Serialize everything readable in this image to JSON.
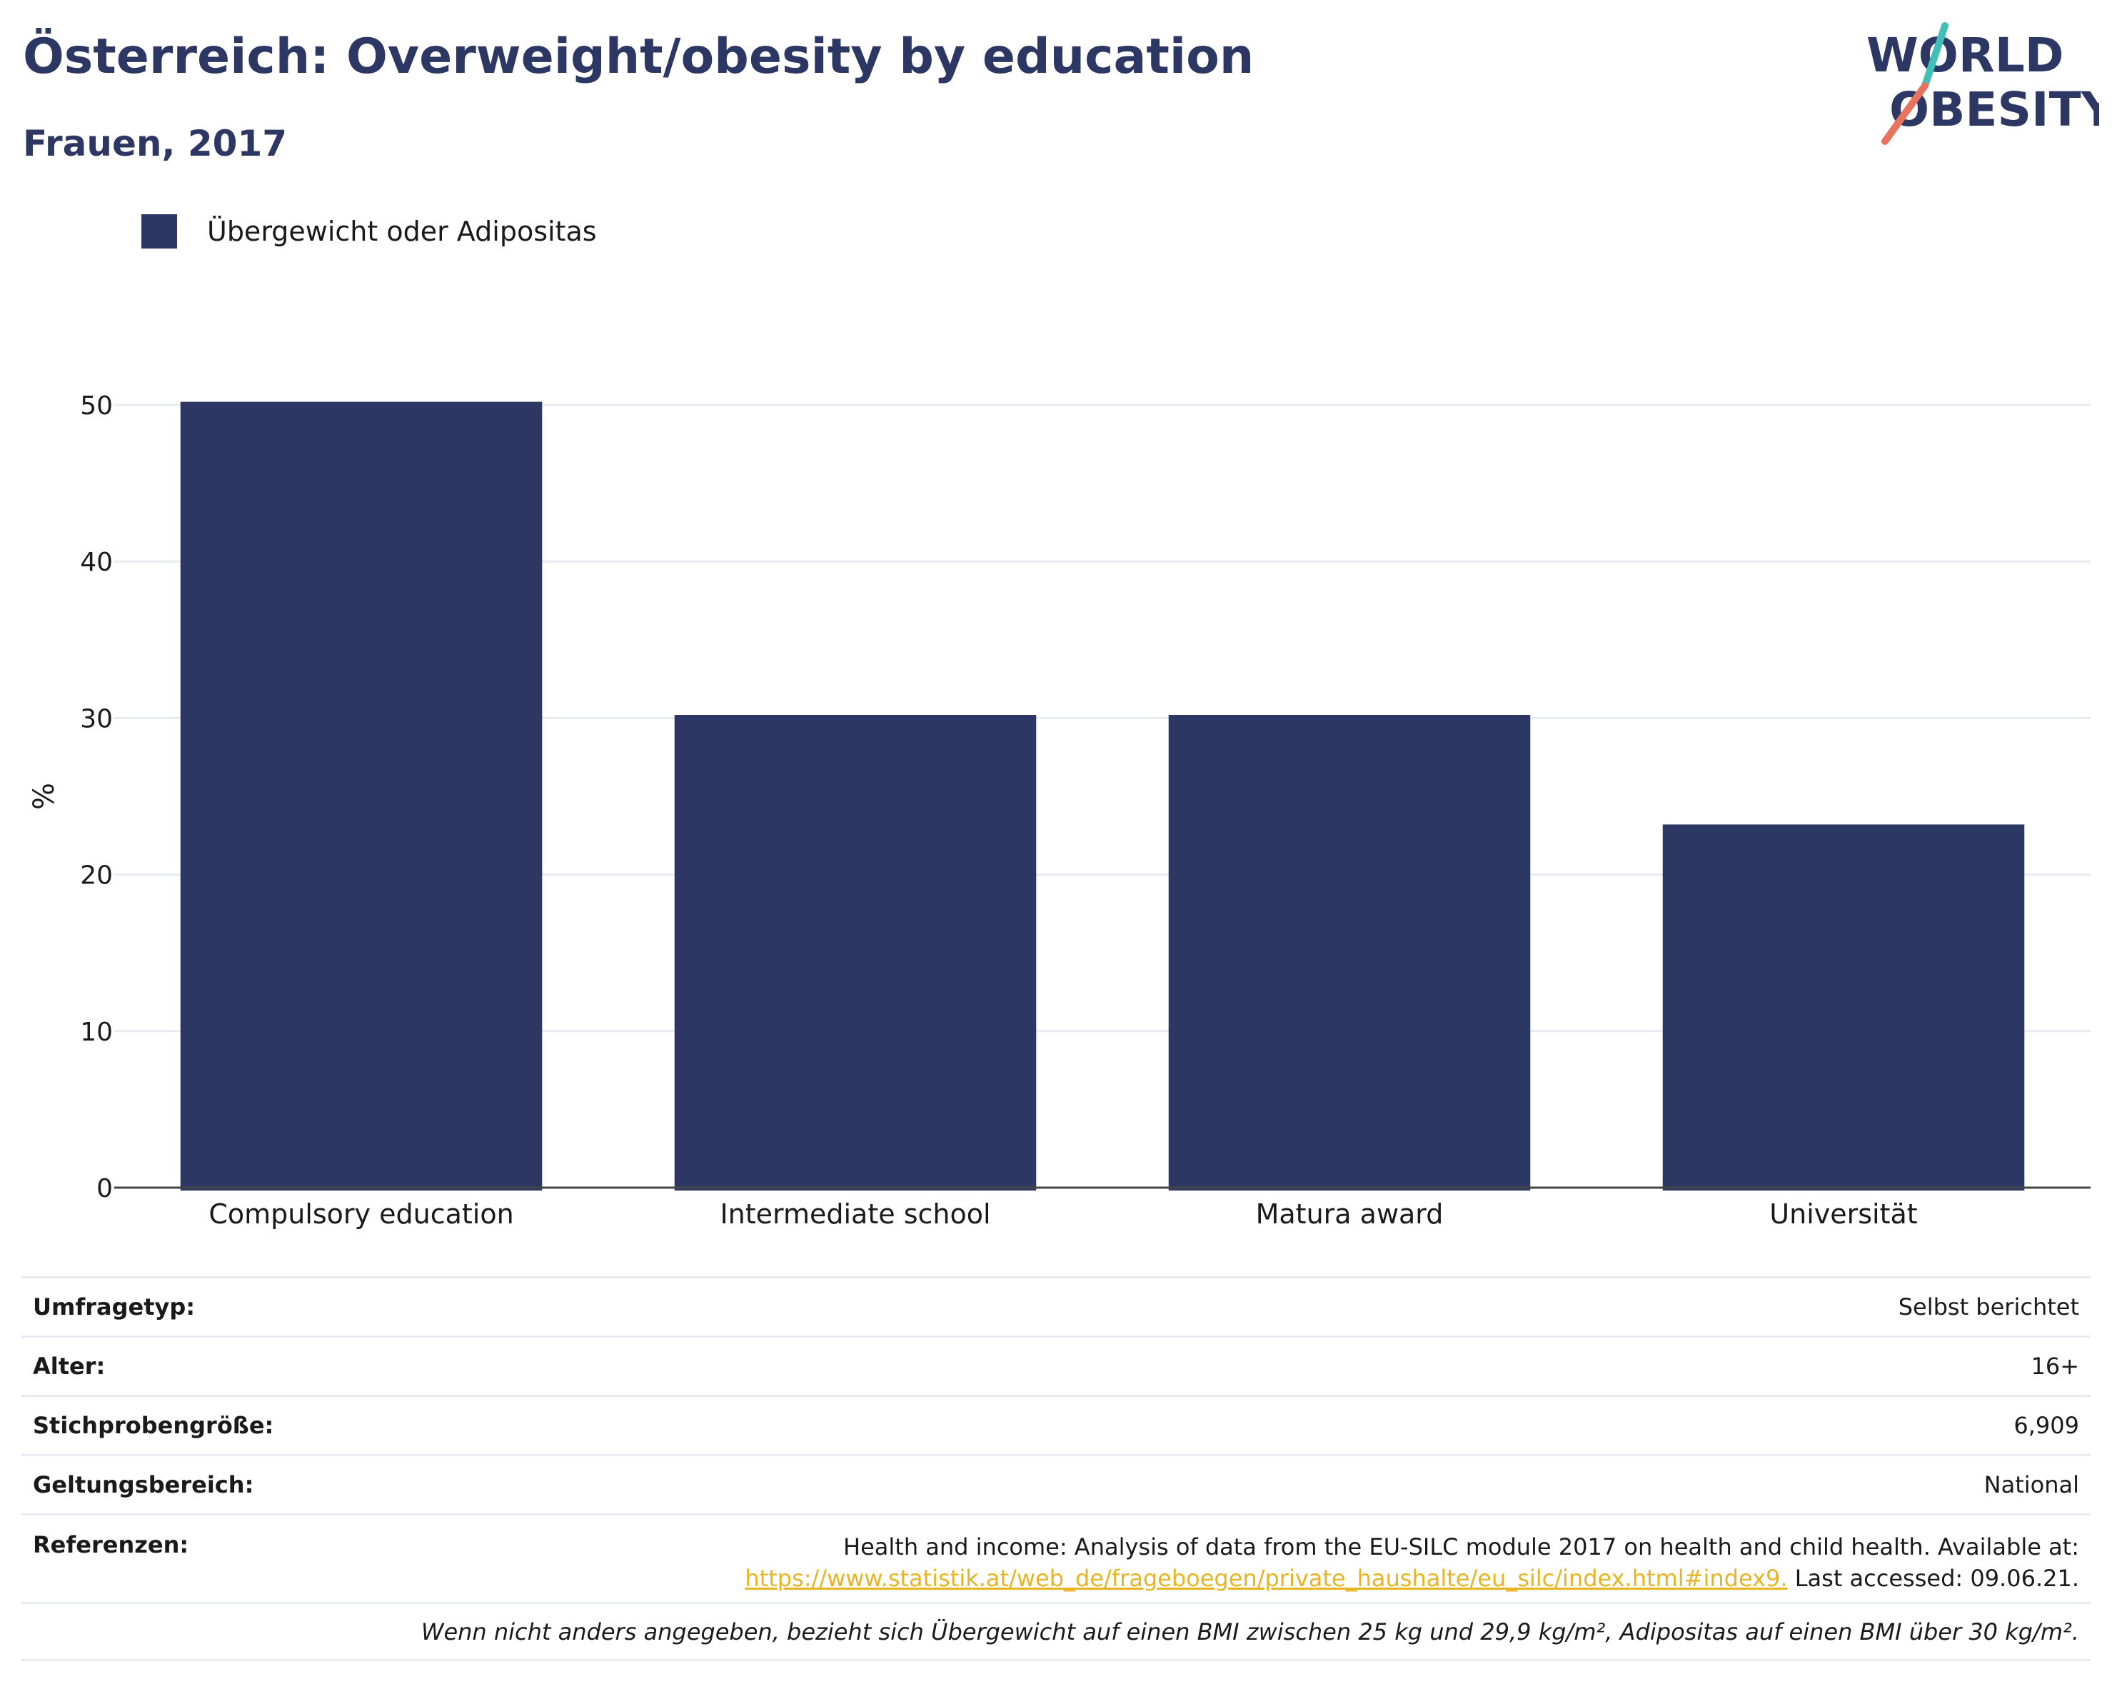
{
  "header": {
    "title": "Österreich: Overweight/obesity by education",
    "subtitle": "Frauen, 2017",
    "logo_line1": "WORLD",
    "logo_line2": "OBESITY"
  },
  "colors": {
    "bar": "#2c3863",
    "title": "#2c3863",
    "logo_teal": "#3fbfb7",
    "logo_coral": "#e8735f",
    "link": "#e7b422",
    "grid": "#e8ebf1"
  },
  "chart_data": {
    "type": "bar",
    "categories": [
      "Compulsory education",
      "Intermediate school",
      "Matura award",
      "Universität"
    ],
    "series": [
      {
        "name": "Übergewicht oder Adipositas",
        "values": [
          50.2,
          30.2,
          30.2,
          23.2
        ]
      }
    ],
    "ylabel": "%",
    "xlabel": "",
    "ylim": [
      0,
      50
    ],
    "yticks": [
      0,
      10,
      20,
      30,
      40,
      50
    ],
    "grid": true,
    "legend": "top-left"
  },
  "meta": {
    "survey_type_label": "Umfragetyp:",
    "survey_type_value": "Selbst berichtet",
    "age_label": "Alter:",
    "age_value": "16+",
    "sample_label": "Stichprobengröße:",
    "sample_value": "6,909",
    "scope_label": "Geltungsbereich:",
    "scope_value": "National",
    "refs_label": "Referenzen:",
    "refs_line1": "Health and income: Analysis of data from the EU-SILC module 2017 on health and child health. Available at:",
    "refs_link": "https://www.statistik.at/web_de/frageboegen/private_haushalte/eu_silc/index.html#index9.",
    "refs_after_link": "Last accessed: 09.06.21.",
    "note": "Wenn nicht anders angegeben, bezieht sich Übergewicht auf einen BMI zwischen 25 kg und 29,9 kg/m², Adipositas auf einen BMI über 30 kg/m²."
  }
}
